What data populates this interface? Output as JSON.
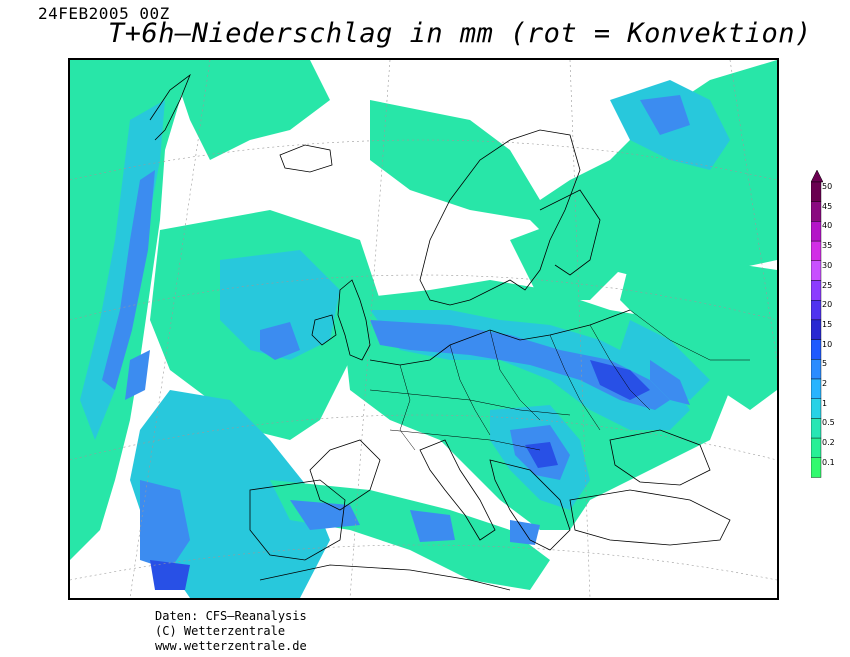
{
  "header": {
    "date": "24FEB2005 00Z",
    "title": "T+6h–Niederschlag in mm (rot = Konvektion)"
  },
  "legend": {
    "levels": [
      "50",
      "45",
      "40",
      "35",
      "30",
      "25",
      "20",
      "15",
      "10",
      "5",
      "2",
      "1",
      "0.5",
      "0.2",
      "0.1"
    ],
    "colors": [
      "#6a0050",
      "#8a0a80",
      "#b414c8",
      "#d22ee6",
      "#c850ff",
      "#8c3cff",
      "#5032f0",
      "#2828d2",
      "#1e5aff",
      "#2a8cff",
      "#28b4ff",
      "#28d2e6",
      "#28e6b4",
      "#28f096",
      "#32fa6e"
    ]
  },
  "map": {
    "colors": {
      "light": "#28e6a8",
      "mid": "#28c8dc",
      "blue": "#3c8cf0",
      "dark": "#2850e6",
      "deep": "#2828c8",
      "convective": "#e6a0a0"
    }
  },
  "footer": {
    "line1": "Daten: CFS–Reanalysis",
    "line2": "(C) Wetterzentrale",
    "line3": "www.wetterzentrale.de"
  }
}
